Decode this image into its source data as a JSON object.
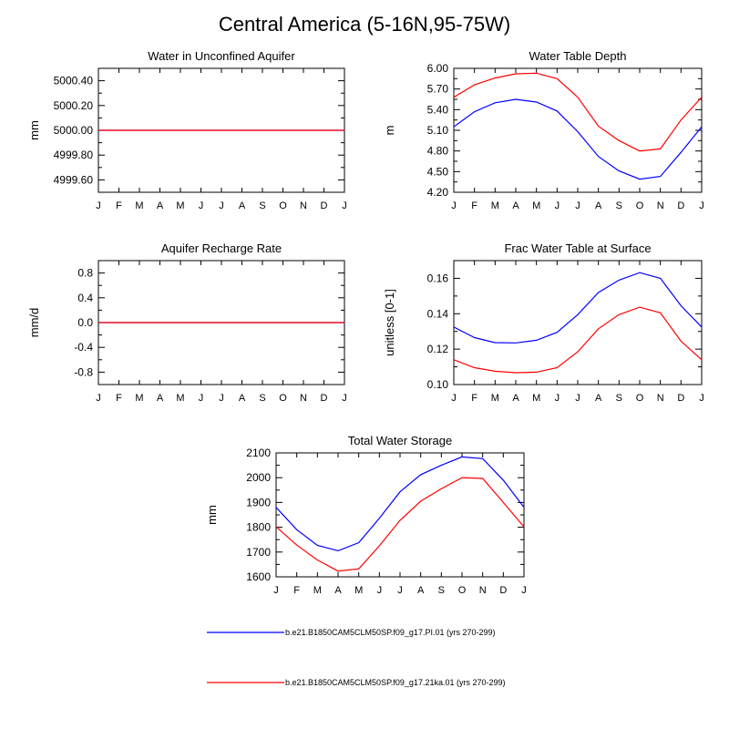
{
  "title": "Central America (5-16N,95-75W)",
  "months": [
    "J",
    "F",
    "M",
    "A",
    "M",
    "J",
    "J",
    "A",
    "S",
    "O",
    "N",
    "D",
    "J"
  ],
  "legend": [
    {
      "label": "b.e21.B1850CAM5CLM50SP.f09_g17.PI.01 (yrs 270-299)",
      "color": "#0000ff"
    },
    {
      "label": "b.e21.B1850CAM5CLM50SP.f09_g17.21ka.01 (yrs 270-299)",
      "color": "#ff0000"
    }
  ],
  "chart_data": [
    {
      "type": "line",
      "title": "Water in Unconfined Aquifer",
      "ylabel": "mm",
      "ylim": [
        4999.5,
        5000.5
      ],
      "yticks": [
        4999.6,
        4999.8,
        5000.0,
        5000.2,
        5000.4
      ],
      "yticklabels": [
        "4999.60",
        "4999.80",
        "5000.00",
        "5000.20",
        "5000.40"
      ],
      "categories": [
        "J",
        "F",
        "M",
        "A",
        "M",
        "J",
        "J",
        "A",
        "S",
        "O",
        "N",
        "D",
        "J"
      ],
      "series": [
        {
          "name": "b.e21.B1850CAM5CLM50SP.f09_g17.PI.01 (yrs 270-299)",
          "color": "#0000ff",
          "values": [
            5000,
            5000,
            5000,
            5000,
            5000,
            5000,
            5000,
            5000,
            5000,
            5000,
            5000,
            5000,
            5000
          ]
        },
        {
          "name": "b.e21.B1850CAM5CLM50SP.f09_g17.21ka.01 (yrs 270-299)",
          "color": "#ff0000",
          "values": [
            5000,
            5000,
            5000,
            5000,
            5000,
            5000,
            5000,
            5000,
            5000,
            5000,
            5000,
            5000,
            5000
          ]
        }
      ]
    },
    {
      "type": "line",
      "title": "Water Table Depth",
      "ylabel": "m",
      "ylim": [
        4.2,
        6.0
      ],
      "yticks": [
        4.2,
        4.5,
        4.8,
        5.1,
        5.4,
        5.7,
        6.0
      ],
      "yticklabels": [
        "4.20",
        "4.50",
        "4.80",
        "5.10",
        "5.40",
        "5.70",
        "6.00"
      ],
      "categories": [
        "J",
        "F",
        "M",
        "A",
        "M",
        "J",
        "J",
        "A",
        "S",
        "O",
        "N",
        "D",
        "J"
      ],
      "series": [
        {
          "name": "b.e21.B1850CAM5CLM50SP.f09_g17.PI.01 (yrs 270-299)",
          "color": "#0000ff",
          "values": [
            5.15,
            5.37,
            5.5,
            5.55,
            5.51,
            5.38,
            5.08,
            4.72,
            4.51,
            4.39,
            4.43,
            4.78,
            5.15
          ]
        },
        {
          "name": "b.e21.B1850CAM5CLM50SP.f09_g17.21ka.01 (yrs 270-299)",
          "color": "#ff0000",
          "values": [
            5.58,
            5.76,
            5.86,
            5.92,
            5.93,
            5.85,
            5.58,
            5.16,
            4.95,
            4.8,
            4.83,
            5.25,
            5.58
          ]
        }
      ]
    },
    {
      "type": "line",
      "title": "Aquifer Recharge Rate",
      "ylabel": "mm/d",
      "ylim": [
        -1.0,
        1.0
      ],
      "yticks": [
        -0.8,
        -0.4,
        0.0,
        0.4,
        0.8
      ],
      "yticklabels": [
        "-0.8",
        "-0.4",
        "0.0",
        "0.4",
        "0.8"
      ],
      "categories": [
        "J",
        "F",
        "M",
        "A",
        "M",
        "J",
        "J",
        "A",
        "S",
        "O",
        "N",
        "D",
        "J"
      ],
      "series": [
        {
          "name": "b.e21.B1850CAM5CLM50SP.f09_g17.PI.01 (yrs 270-299)",
          "color": "#0000ff",
          "values": [
            0,
            0,
            0,
            0,
            0,
            0,
            0,
            0,
            0,
            0,
            0,
            0,
            0
          ]
        },
        {
          "name": "b.e21.B1850CAM5CLM50SP.f09_g17.21ka.01 (yrs 270-299)",
          "color": "#ff0000",
          "values": [
            0,
            0,
            0,
            0,
            0,
            0,
            0,
            0,
            0,
            0,
            0,
            0,
            0
          ]
        }
      ]
    },
    {
      "type": "line",
      "title": "Frac Water Table at Surface",
      "ylabel": "unitless [0-1]",
      "ylim": [
        0.1,
        0.17
      ],
      "yticks": [
        0.1,
        0.12,
        0.14,
        0.16
      ],
      "yticklabels": [
        "0.10",
        "0.12",
        "0.14",
        "0.16"
      ],
      "categories": [
        "J",
        "F",
        "M",
        "A",
        "M",
        "J",
        "J",
        "A",
        "S",
        "O",
        "N",
        "D",
        "J"
      ],
      "series": [
        {
          "name": "b.e21.B1850CAM5CLM50SP.f09_g17.PI.01 (yrs 270-299)",
          "color": "#0000ff",
          "values": [
            0.1325,
            0.1265,
            0.1237,
            0.1235,
            0.125,
            0.1295,
            0.1395,
            0.152,
            0.159,
            0.1632,
            0.16,
            0.1445,
            0.1325
          ]
        },
        {
          "name": "b.e21.B1850CAM5CLM50SP.f09_g17.21ka.01 (yrs 270-299)",
          "color": "#ff0000",
          "values": [
            0.114,
            0.1095,
            0.1075,
            0.1067,
            0.107,
            0.1095,
            0.1185,
            0.1315,
            0.1395,
            0.1437,
            0.1405,
            0.1245,
            0.114
          ]
        }
      ]
    },
    {
      "type": "line",
      "title": "Total Water Storage",
      "ylabel": "mm",
      "ylim": [
        1600,
        2100
      ],
      "yticks": [
        1600,
        1700,
        1800,
        1900,
        2000,
        2100
      ],
      "yticklabels": [
        "1600",
        "1700",
        "1800",
        "1900",
        "2000",
        "2100"
      ],
      "categories": [
        "J",
        "F",
        "M",
        "A",
        "M",
        "J",
        "J",
        "A",
        "S",
        "O",
        "N",
        "D",
        "J"
      ],
      "series": [
        {
          "name": "b.e21.B1850CAM5CLM50SP.f09_g17.PI.01 (yrs 270-299)",
          "color": "#0000ff",
          "values": [
            1880,
            1790,
            1727,
            1705,
            1738,
            1836,
            1943,
            2012,
            2050,
            2084,
            2077,
            1990,
            1880
          ]
        },
        {
          "name": "b.e21.B1850CAM5CLM50SP.f09_g17.21ka.01 (yrs 270-299)",
          "color": "#ff0000",
          "values": [
            1802,
            1728,
            1668,
            1623,
            1632,
            1725,
            1828,
            1905,
            1955,
            2000,
            1997,
            1900,
            1802
          ]
        }
      ]
    }
  ]
}
